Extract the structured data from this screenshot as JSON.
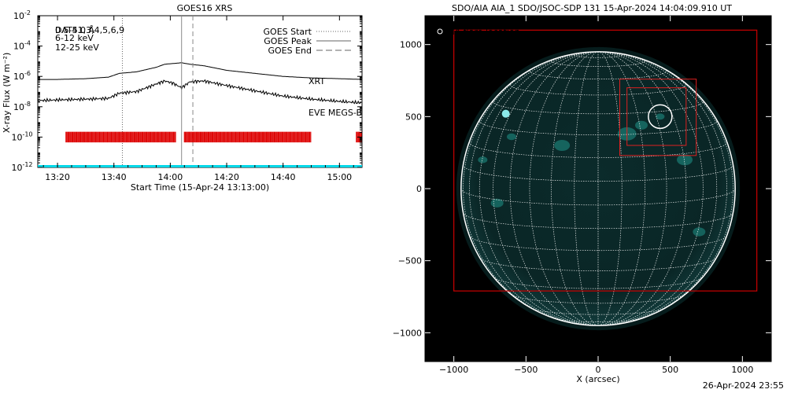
{
  "footer_timestamp": "26-Apr-2024 23:55",
  "chart_data": [
    {
      "type": "line",
      "title": "GOES16 XRS",
      "xlabel": "Start Time (15-Apr-24 13:13:00)",
      "ylabel": "X-ray Flux (W m⁻²)",
      "yscale": "log",
      "ylim": [
        1e-12,
        0.01
      ],
      "xlim_minutes": [
        13.0,
        15.08
      ],
      "x_ticks": [
        "13:20",
        "13:40",
        "14:00",
        "14:20",
        "14:40",
        "15:00"
      ],
      "y_ticks": [
        {
          "base": "10",
          "exp": "-12",
          "value": -12
        },
        {
          "base": "10",
          "exp": "-10",
          "value": -10
        },
        {
          "base": "10",
          "exp": "-8",
          "value": -8
        },
        {
          "base": "10",
          "exp": "-6",
          "value": -6
        },
        {
          "base": "10",
          "exp": "-4",
          "value": -4
        },
        {
          "base": "10",
          "exp": "-2",
          "value": -2
        }
      ],
      "legend_left": [
        {
          "text": "0.5-4.0 Å",
          "color": "#000000"
        },
        {
          "text": "DAT51,3,4,5,6,9",
          "color": "#000000"
        },
        {
          "text": "6-12 keV",
          "color": "#cc00cc"
        },
        {
          "text": "12-25 keV",
          "color": "#00b000"
        }
      ],
      "legend_right": [
        {
          "text": "GOES Start",
          "style": "dotted"
        },
        {
          "text": "GOES Peak",
          "style": "solid"
        },
        {
          "text": "GOES End",
          "style": "dashed"
        }
      ],
      "annotations": [
        {
          "text": "XRT",
          "color": "#cc0000"
        },
        {
          "text": "EVE MEGS-B",
          "color": "#00e0e0"
        }
      ],
      "markers": {
        "goes_start": "13:43",
        "goes_peak": "14:04",
        "goes_end": "14:08"
      },
      "series": [
        {
          "color": "#000000",
          "x": [
            "13:13",
            "13:20",
            "13:30",
            "13:38",
            "13:42",
            "13:48",
            "13:55",
            "13:58",
            "14:01",
            "14:04",
            "14:07",
            "14:12",
            "14:20",
            "14:30",
            "14:40",
            "14:50",
            "15:00",
            "15:08"
          ],
          "log_flux": [
            -6.2,
            -6.2,
            -6.15,
            -6.05,
            -5.8,
            -5.7,
            -5.4,
            -5.2,
            -5.15,
            -5.1,
            -5.2,
            -5.3,
            -5.6,
            -5.8,
            -6.0,
            -6.1,
            -6.15,
            -6.2
          ]
        },
        {
          "color": "#000000",
          "x": [
            "13:13",
            "13:20",
            "13:30",
            "13:38",
            "13:42",
            "13:48",
            "13:55",
            "13:58",
            "14:01",
            "14:04",
            "14:07",
            "14:12",
            "14:20",
            "14:30",
            "14:40",
            "14:50",
            "15:00",
            "15:08"
          ],
          "log_flux": [
            -7.6,
            -7.55,
            -7.5,
            -7.45,
            -7.1,
            -7.0,
            -6.5,
            -6.3,
            -6.45,
            -6.75,
            -6.35,
            -6.3,
            -6.6,
            -6.95,
            -7.3,
            -7.5,
            -7.65,
            -7.75
          ]
        }
      ],
      "xrt_coverage": [
        [
          "13:23",
          "14:02"
        ],
        [
          "14:05",
          "14:50"
        ],
        [
          "15:06",
          "15:08"
        ]
      ],
      "eve_level": -12.0
    },
    {
      "type": "image",
      "title": "SDO/AIA AIA_1 SDO/JSOC-SDP 131 15-Apr-2024 14:04:09.910 UT",
      "xlabel": "X (arcsec)",
      "ylabel": "",
      "xlim": [
        -1200,
        1200
      ],
      "ylim": [
        -1200,
        1200
      ],
      "x_ticks": [
        -1000,
        -500,
        0,
        500,
        1000
      ],
      "y_ticks": [
        -1000,
        -500,
        0,
        500,
        1000
      ],
      "x_tick_labels": [
        "−1000",
        "−500",
        "0",
        "500",
        "1000"
      ],
      "y_tick_labels": [
        "−1000",
        "−500",
        "0",
        "500",
        "1000"
      ],
      "legend": [
        {
          "text": "AIA flare location",
          "color": "#ffffff",
          "symbol": "circle"
        }
      ],
      "labels": [
        {
          "text": "XRT FOV",
          "color": "#cc0000"
        }
      ],
      "solar_radius_arcsec": 950,
      "flare_location": {
        "x": 430,
        "y": 500
      },
      "xrt_fov": {
        "x0": -1000,
        "y0": -710,
        "x1": 1100,
        "y1": 1100
      },
      "roi_boxes": [
        {
          "x0": 150,
          "y0": 230,
          "x1": 680,
          "y1": 760
        },
        {
          "x0": 200,
          "y0": 300,
          "x1": 610,
          "y1": 700
        }
      ],
      "colors": {
        "background": "#000000",
        "limb": "#ffffff",
        "grid": "#ffffff",
        "disk": "#0b2b2b",
        "bright": "#2bd4c4",
        "fov": "#cc0000"
      }
    }
  ]
}
